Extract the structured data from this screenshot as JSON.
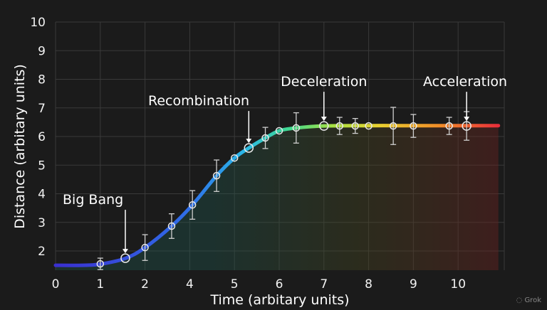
{
  "chart_data": {
    "type": "line",
    "title": "",
    "xlabel": "Time (arbitary units)",
    "ylabel": "Distance (arbitary units)",
    "x_tick_labels": [
      "0",
      "1",
      "2",
      "4",
      "5",
      "6",
      "7",
      "8",
      "9",
      "10"
    ],
    "y_tick_labels": [
      "2",
      "3",
      "4",
      "5",
      "6",
      "7",
      "8",
      "9",
      "10"
    ],
    "ylim": [
      1.33,
      10
    ],
    "grid": true,
    "line_gradient_colors": [
      "#3a2fd0",
      "#2f6fe8",
      "#2ab8e8",
      "#3fd890",
      "#a8e040",
      "#e8d030",
      "#f08a28",
      "#e8243c"
    ],
    "curve": {
      "x": [
        0,
        0.6,
        1.0,
        1.56,
        2.0,
        3.19,
        4.06,
        4.6,
        5.0,
        5.32,
        5.69,
        6.0,
        6.38,
        7.0,
        8.0,
        9.0,
        10.0,
        10.9
      ],
      "y": [
        1.5,
        1.5,
        1.54,
        1.74,
        2.12,
        2.87,
        3.61,
        4.63,
        5.25,
        5.6,
        5.95,
        6.2,
        6.3,
        6.37,
        6.38,
        6.38,
        6.38,
        6.38
      ]
    },
    "points": [
      {
        "x": 1.0,
        "y": 1.55,
        "err": 0.2
      },
      {
        "x": 1.56,
        "y": 1.75,
        "err": 0
      },
      {
        "x": 2.0,
        "y": 2.12,
        "err": 0.45
      },
      {
        "x": 3.19,
        "y": 2.87,
        "err": 0.43
      },
      {
        "x": 4.06,
        "y": 3.61,
        "err": 0.5
      },
      {
        "x": 4.6,
        "y": 4.63,
        "err": 0.55
      },
      {
        "x": 5.0,
        "y": 5.25,
        "err": 0
      },
      {
        "x": 5.32,
        "y": 5.6,
        "err": 0
      },
      {
        "x": 5.69,
        "y": 5.95,
        "err": 0.37
      },
      {
        "x": 6.0,
        "y": 6.2,
        "err": 0
      },
      {
        "x": 6.38,
        "y": 6.3,
        "err": 0.53
      },
      {
        "x": 7.0,
        "y": 6.37,
        "err": 0
      },
      {
        "x": 7.35,
        "y": 6.37,
        "err": 0.3
      },
      {
        "x": 7.7,
        "y": 6.37,
        "err": 0.26
      },
      {
        "x": 8.0,
        "y": 6.37,
        "err": 0
      },
      {
        "x": 8.55,
        "y": 6.37,
        "err": 0.65
      },
      {
        "x": 9.0,
        "y": 6.37,
        "err": 0.4
      },
      {
        "x": 9.8,
        "y": 6.37,
        "err": 0.3
      },
      {
        "x": 10.19,
        "y": 6.37,
        "err": 0.5
      }
    ],
    "annotations": [
      {
        "text": "Big Bang",
        "x": 1.56,
        "y": 1.75
      },
      {
        "text": "Recombination",
        "x": 5.32,
        "y": 5.6
      },
      {
        "text": "Deceleration",
        "x": 7.0,
        "y": 6.37
      },
      {
        "text": "Acceleration",
        "x": 10.19,
        "y": 6.37
      }
    ]
  },
  "watermark": "Grok"
}
